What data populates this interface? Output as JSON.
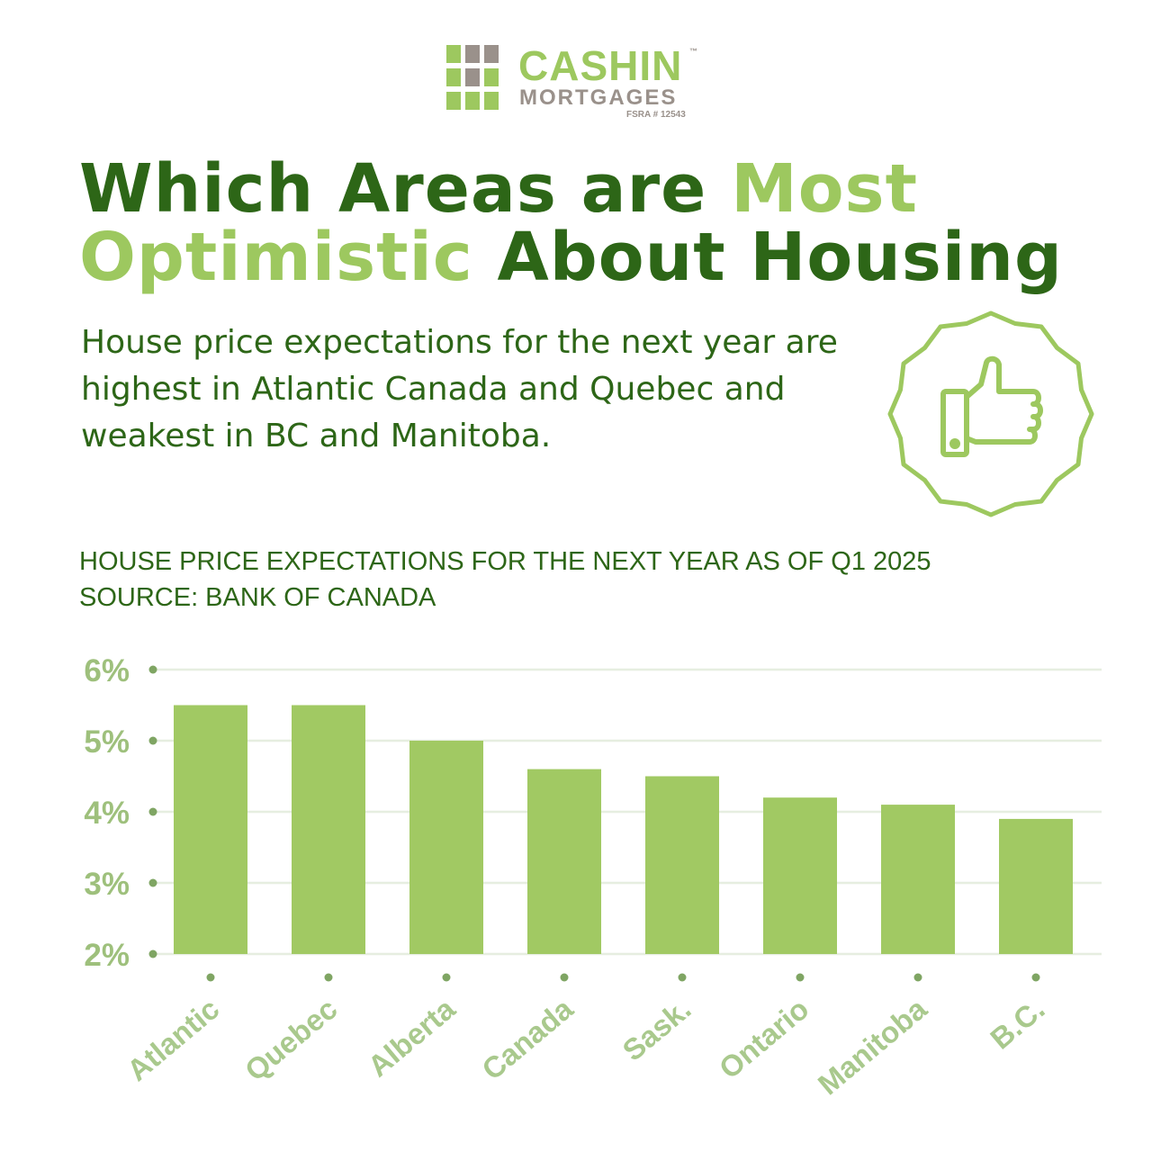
{
  "brand": {
    "name": "CASHIN",
    "trademark": "™",
    "subname": "MORTGAGES",
    "license": "FSRA # 12543"
  },
  "headline": {
    "line1_part1": "Which Areas are ",
    "line1_part2": "Most",
    "line2_part1": "Optimistic",
    "line2_part2": " About Housing"
  },
  "subtitle": "House price expectations for the next year are highest in Atlantic Canada and Quebec and weakest in BC and Manitoba.",
  "badge_icon": "thumbs-up-icon",
  "caption": {
    "line1": "HOUSE PRICE EXPECTATIONS FOR THE NEXT YEAR AS OF Q1 2025",
    "line2": "SOURCE: BANK OF CANADA"
  },
  "colors": {
    "dark_green": "#2d6617",
    "light_green": "#9dc85f",
    "bar": "#a1c963",
    "gray": "#9a918b",
    "grid": "#e6eee0",
    "tick": "#9ec07c",
    "dot": "#7fa563"
  },
  "chart_data": {
    "type": "bar",
    "title": "HOUSE PRICE EXPECTATIONS FOR THE NEXT YEAR AS OF Q1 2025",
    "source": "SOURCE: BANK OF CANADA",
    "categories": [
      "Atlantic",
      "Quebec",
      "Alberta",
      "Canada",
      "Sask.",
      "Ontario",
      "Manitoba",
      "B.C."
    ],
    "values": [
      5.5,
      5.5,
      5.0,
      4.6,
      4.5,
      4.2,
      4.1,
      3.9
    ],
    "unit": "%",
    "ylim": [
      2,
      6
    ],
    "yticks": [
      2,
      3,
      4,
      5,
      6
    ],
    "ytick_labels": [
      "2%",
      "3%",
      "4%",
      "5%",
      "6%"
    ],
    "grid": true,
    "xlabel": "",
    "ylabel": ""
  }
}
